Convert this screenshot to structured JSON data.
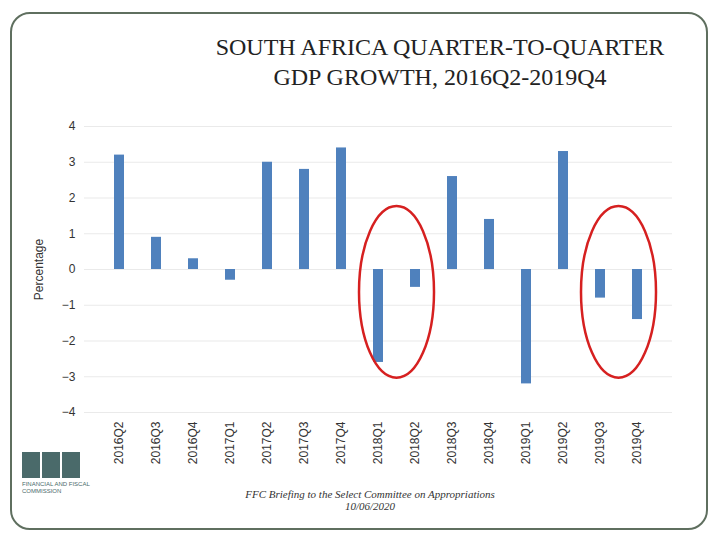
{
  "chart_data": {
    "type": "bar",
    "title": "SOUTH AFRICA QUARTER-TO-QUARTER GDP GROWTH, 2016Q2-2019Q4",
    "y_label": "Percentage",
    "categories": [
      "2016Q2",
      "2016Q3",
      "2016Q4",
      "2017Q1",
      "2017Q2",
      "2017Q3",
      "2017Q4",
      "2018Q1",
      "2018Q2",
      "2018Q3",
      "2018Q4",
      "2019Q1",
      "2019Q2",
      "2019Q3",
      "2019Q4"
    ],
    "values": [
      3.2,
      0.9,
      0.3,
      -0.3,
      3.0,
      2.8,
      3.4,
      -2.6,
      -0.5,
      2.6,
      1.4,
      -3.2,
      3.3,
      -0.8,
      -1.4
    ],
    "color": "#4f81bd",
    "ylim": [
      -4,
      4
    ],
    "yticks": [
      -4,
      -3,
      -2,
      -1,
      0,
      1,
      2,
      3,
      4
    ],
    "grid": true,
    "highlights": [
      [
        "2018Q1",
        "2018Q2"
      ],
      [
        "2019Q3",
        "2019Q4"
      ]
    ],
    "caption": "FFC Briefing to the Select Committee on Appropriations 10/06/2020",
    "logo_text": "FINANCIAL AND FISCAL COMMISSION"
  }
}
